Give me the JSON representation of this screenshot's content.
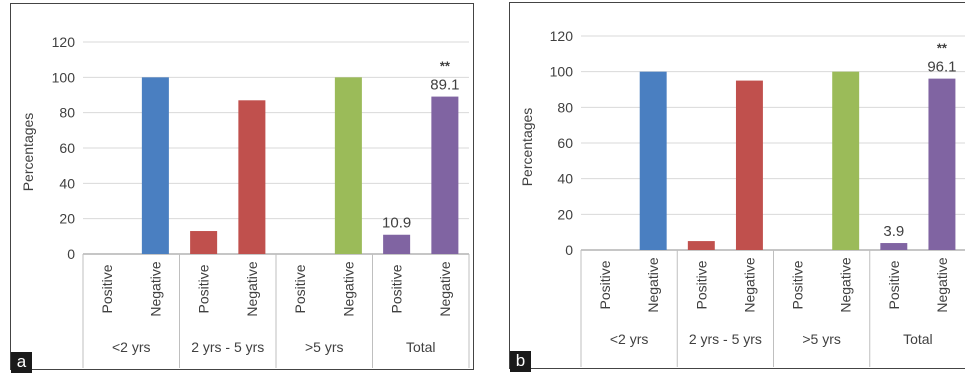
{
  "colors": {
    "lt2": "#4a7fc1",
    "2to5": "#c0504d",
    "gt5": "#9bbb59",
    "total": "#8064a2"
  },
  "chart_data": [
    {
      "panel": "a",
      "type": "bar",
      "ylabel": "Percentages",
      "ylim": [
        0,
        120
      ],
      "yticks": [
        0,
        20,
        40,
        60,
        80,
        100,
        120
      ],
      "groups": [
        {
          "label": "<2 yrs",
          "color": "#4a7fc1",
          "bars": [
            {
              "category": "Positive",
              "value": 0
            },
            {
              "category": "Negative",
              "value": 100
            }
          ]
        },
        {
          "label": "2 yrs - 5 yrs",
          "color": "#c0504d",
          "bars": [
            {
              "category": "Positive",
              "value": 13
            },
            {
              "category": "Negative",
              "value": 87
            }
          ]
        },
        {
          "label": ">5 yrs",
          "color": "#9bbb59",
          "bars": [
            {
              "category": "Positive",
              "value": 0
            },
            {
              "category": "Negative",
              "value": 100
            }
          ]
        },
        {
          "label": "Total",
          "color": "#8064a2",
          "bars": [
            {
              "category": "Positive",
              "value": 10.9,
              "data_label": "10.9"
            },
            {
              "category": "Negative",
              "value": 89.1,
              "data_label": "89.1",
              "annotation": "**"
            }
          ]
        }
      ],
      "grid": true
    },
    {
      "panel": "b",
      "type": "bar",
      "ylabel": "Percentages",
      "ylim": [
        0,
        120
      ],
      "yticks": [
        0,
        20,
        40,
        60,
        80,
        100,
        120
      ],
      "groups": [
        {
          "label": "<2 yrs",
          "color": "#4a7fc1",
          "bars": [
            {
              "category": "Positive",
              "value": 0
            },
            {
              "category": "Negative",
              "value": 100
            }
          ]
        },
        {
          "label": "2 yrs - 5 yrs",
          "color": "#c0504d",
          "bars": [
            {
              "category": "Positive",
              "value": 5
            },
            {
              "category": "Negative",
              "value": 95
            }
          ]
        },
        {
          "label": ">5 yrs",
          "color": "#9bbb59",
          "bars": [
            {
              "category": "Positive",
              "value": 0
            },
            {
              "category": "Negative",
              "value": 100
            }
          ]
        },
        {
          "label": "Total",
          "color": "#8064a2",
          "bars": [
            {
              "category": "Positive",
              "value": 3.9,
              "data_label": "3.9"
            },
            {
              "category": "Negative",
              "value": 96.1,
              "data_label": "96.1",
              "annotation": "**"
            }
          ]
        }
      ],
      "grid": true
    }
  ],
  "panel_letters": [
    "a",
    "b"
  ]
}
